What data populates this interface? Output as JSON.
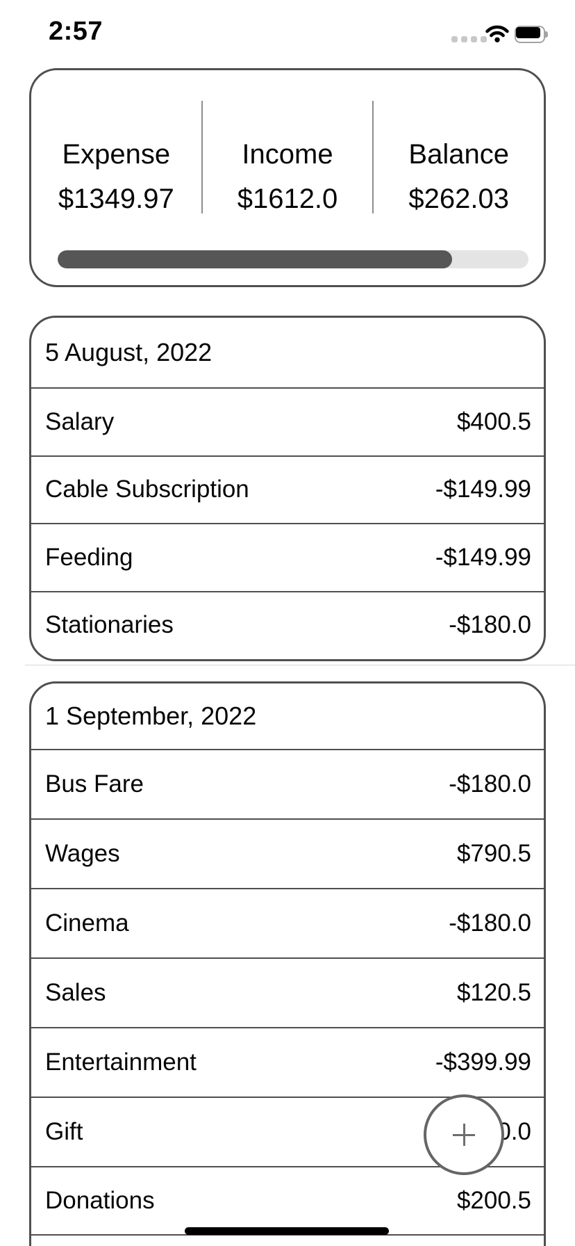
{
  "status_bar": {
    "time": "2:57",
    "cellular_dots": 4,
    "icons": [
      "cellular-dots-icon",
      "wifi-icon",
      "battery-icon"
    ]
  },
  "summary": {
    "items": [
      {
        "label": "Expense",
        "value": "$1349.97"
      },
      {
        "label": "Income",
        "value": "$1612.0"
      },
      {
        "label": "Balance",
        "value": "$262.03"
      }
    ],
    "progress": {
      "percent": 83.8,
      "fill_color": "#565656",
      "track_color": "#e4e4e4"
    }
  },
  "sections": [
    {
      "date": "5 August, 2022",
      "transactions": [
        {
          "name": "Salary",
          "value": "$400.5"
        },
        {
          "name": "Cable Subscription",
          "value": "-$149.99"
        },
        {
          "name": "Feeding",
          "value": "-$149.99"
        },
        {
          "name": "Stationaries",
          "value": "-$180.0"
        }
      ]
    },
    {
      "date": "1 September, 2022",
      "transactions": [
        {
          "name": "Bus Fare",
          "value": "-$180.0"
        },
        {
          "name": "Wages",
          "value": "$790.5"
        },
        {
          "name": "Cinema",
          "value": "-$180.0"
        },
        {
          "name": "Sales",
          "value": "$120.5"
        },
        {
          "name": "Entertainment",
          "value": "-$399.99"
        },
        {
          "name": "Gift",
          "value": "0.0"
        },
        {
          "name": "Donations",
          "value": "$200.5"
        }
      ]
    }
  ],
  "fab": {
    "icon": "plus"
  },
  "colors": {
    "card_border": "#4f4f4f",
    "row_divider": "#4f4f4f",
    "column_divider": "#8d8d8d",
    "fab_border": "#656565",
    "status_dots": "#c8c8c8"
  }
}
